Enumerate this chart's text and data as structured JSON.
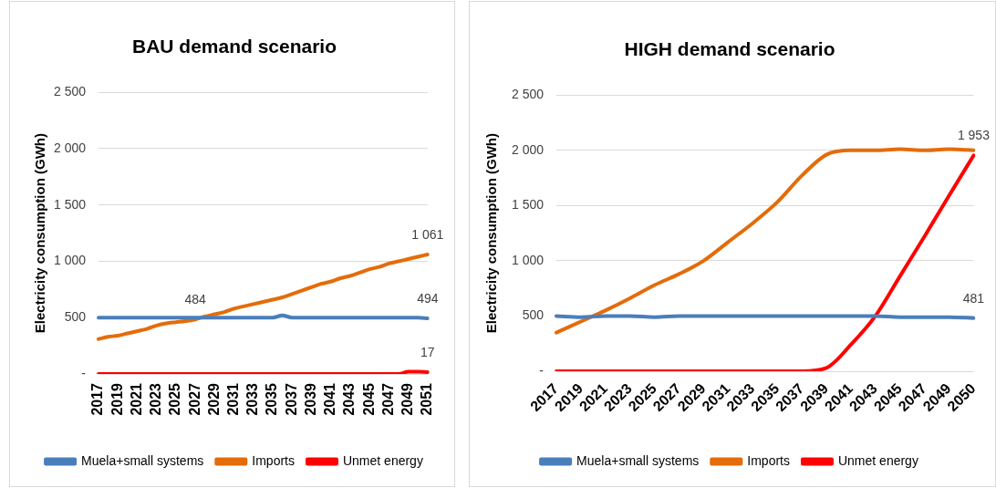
{
  "chart_data": [
    {
      "type": "line",
      "title": "BAU demand scenario",
      "ylabel": "Electricity consumption (GWh)",
      "categories": [
        "2017",
        null,
        "2019",
        null,
        "2021",
        null,
        "2023",
        null,
        "2025",
        null,
        "2027",
        null,
        "2029",
        null,
        "2031",
        null,
        "2033",
        null,
        "2035",
        null,
        "2037",
        null,
        "2039",
        null,
        "2041",
        null,
        "2043",
        null,
        "2045",
        null,
        "2047",
        null,
        "2049",
        null,
        "2051"
      ],
      "series": [
        {
          "name": "Muela+small systems",
          "color": "#4a7ebb",
          "values": [
            500,
            500,
            500,
            500,
            500,
            500,
            500,
            500,
            500,
            500,
            500,
            500,
            500,
            500,
            500,
            500,
            500,
            500,
            500,
            520,
            500,
            500,
            500,
            500,
            500,
            500,
            500,
            500,
            500,
            500,
            500,
            500,
            500,
            500,
            494
          ],
          "value_labels": [
            null,
            null,
            null,
            null,
            null,
            null,
            null,
            null,
            null,
            null,
            null,
            null,
            null,
            null,
            null,
            null,
            null,
            null,
            null,
            null,
            null,
            null,
            null,
            null,
            null,
            null,
            null,
            null,
            null,
            null,
            null,
            null,
            null,
            null,
            "494"
          ]
        },
        {
          "name": "Imports",
          "color": "#e46c0a",
          "values": [
            310,
            330,
            340,
            360,
            380,
            400,
            430,
            450,
            460,
            470,
            484,
            510,
            530,
            550,
            580,
            600,
            620,
            640,
            660,
            680,
            710,
            740,
            770,
            800,
            820,
            850,
            870,
            900,
            930,
            950,
            980,
            1000,
            1020,
            1040,
            1061
          ],
          "value_labels": [
            null,
            null,
            null,
            null,
            null,
            null,
            null,
            null,
            null,
            null,
            "484",
            null,
            null,
            null,
            null,
            null,
            null,
            null,
            null,
            null,
            null,
            null,
            null,
            null,
            null,
            null,
            null,
            null,
            null,
            null,
            null,
            null,
            null,
            null,
            "1 061"
          ]
        },
        {
          "name": "Unmet energy",
          "color": "#ff0000",
          "values": [
            0,
            0,
            0,
            0,
            0,
            0,
            0,
            0,
            0,
            0,
            0,
            0,
            0,
            0,
            0,
            0,
            0,
            0,
            0,
            0,
            0,
            0,
            0,
            0,
            0,
            0,
            0,
            0,
            0,
            0,
            0,
            0,
            20,
            20,
            17
          ],
          "value_labels": [
            null,
            null,
            null,
            null,
            null,
            null,
            null,
            null,
            null,
            null,
            null,
            null,
            null,
            null,
            null,
            null,
            null,
            null,
            null,
            null,
            null,
            null,
            null,
            null,
            null,
            null,
            null,
            null,
            null,
            null,
            null,
            null,
            null,
            null,
            "17"
          ]
        }
      ],
      "ylim": [
        0,
        2500
      ],
      "yticks": [
        {
          "value": 0,
          "label": "-"
        },
        500,
        {
          "value": 1000,
          "label": "1 000"
        },
        {
          "value": 1500,
          "label": "1 500"
        },
        {
          "value": 2000,
          "label": "2 000"
        },
        {
          "value": 2500,
          "label": "2 500"
        }
      ],
      "grid": "y",
      "legend": "bottom",
      "marker": "none",
      "line_style": "solid"
    },
    {
      "type": "line",
      "title": "HIGH demand scenario",
      "ylabel": "Electricity consumption (GWh)",
      "categories": [
        "2017",
        "2019",
        "2021",
        "2023",
        "2025",
        "2027",
        "2029",
        "2031",
        "2033",
        "2035",
        "2037",
        "2039",
        "2041",
        "2043",
        "2045",
        "2047",
        "2049",
        "2050"
      ],
      "series": [
        {
          "name": "Muela+small systems",
          "color": "#4a7ebb",
          "values": [
            500,
            490,
            500,
            500,
            490,
            500,
            500,
            500,
            500,
            500,
            500,
            500,
            500,
            500,
            490,
            490,
            490,
            481
          ],
          "value_labels": [
            null,
            null,
            null,
            null,
            null,
            null,
            null,
            null,
            null,
            null,
            null,
            null,
            null,
            null,
            null,
            null,
            null,
            "481"
          ]
        },
        {
          "name": "Imports",
          "color": "#e46c0a",
          "values": [
            350,
            450,
            550,
            660,
            780,
            880,
            1000,
            1170,
            1340,
            1530,
            1770,
            1960,
            2000,
            2000,
            2010,
            2000,
            2010,
            2000
          ]
        },
        {
          "name": "Unmet energy",
          "color": "#ff0000",
          "values": [
            0,
            0,
            0,
            0,
            0,
            0,
            0,
            0,
            0,
            0,
            0,
            30,
            240,
            500,
            860,
            1220,
            1590,
            1953
          ],
          "value_labels": [
            null,
            null,
            null,
            null,
            null,
            null,
            null,
            null,
            null,
            null,
            null,
            null,
            null,
            null,
            null,
            null,
            null,
            "1 953"
          ]
        }
      ],
      "ylim": [
        0,
        2500
      ],
      "yticks": [
        {
          "value": 0,
          "label": "-"
        },
        500,
        {
          "value": 1000,
          "label": "1 000"
        },
        {
          "value": 1500,
          "label": "1 500"
        },
        {
          "value": 2000,
          "label": "2 000"
        },
        {
          "value": 2500,
          "label": "2 500"
        }
      ],
      "grid": "y",
      "legend": "bottom",
      "marker": "none",
      "line_style": "solid"
    }
  ]
}
